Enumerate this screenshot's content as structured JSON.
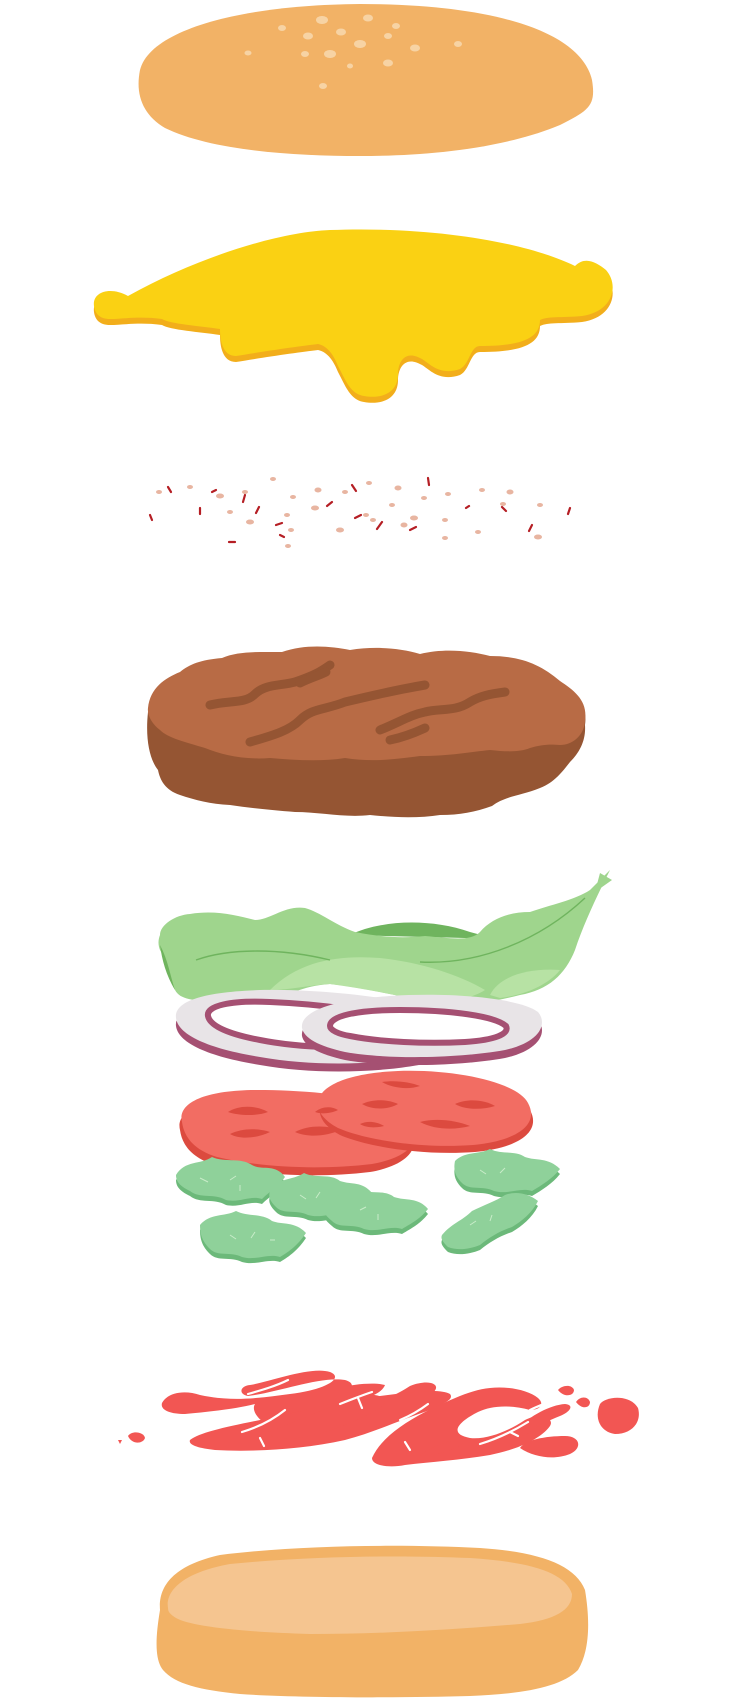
{
  "illustration": {
    "subject": "exploded-burger",
    "layers": [
      {
        "id": "top-bun",
        "icon": "top-bun-icon"
      },
      {
        "id": "cheese",
        "icon": "cheese-slice-icon"
      },
      {
        "id": "seasoning",
        "icon": "seasoning-flakes-icon"
      },
      {
        "id": "patty",
        "icon": "beef-patty-icon"
      },
      {
        "id": "lettuce",
        "icon": "lettuce-leaf-icon"
      },
      {
        "id": "onion",
        "icon": "onion-rings-icon"
      },
      {
        "id": "tomato",
        "icon": "tomato-slices-icon"
      },
      {
        "id": "pickles",
        "icon": "pickle-chips-icon"
      },
      {
        "id": "ketchup",
        "icon": "ketchup-drizzle-icon"
      },
      {
        "id": "bottom-bun",
        "icon": "bottom-bun-icon"
      }
    ],
    "colors": {
      "background": "#ffffff",
      "bun": "#f2b266",
      "bun_inner": "#f5c590",
      "sesame": "#f7d3a4",
      "cheese": "#fad113",
      "cheese_shadow": "#f2ae1b",
      "seasoning_light": "#e8b5a1",
      "seasoning_dark": "#b51e24",
      "patty": "#b86b45",
      "patty_dark": "#955533",
      "patty_grill": "#955533",
      "lettuce": "#9fd58d",
      "lettuce_dark": "#6fb45e",
      "lettuce_light": "#b7e2a4",
      "onion_outer": "#a55072",
      "onion_inner": "#e8e4e7",
      "tomato": "#f26d63",
      "tomato_dark": "#dc4a3f",
      "pickle": "#8fd19a",
      "pickle_dark": "#6cb97a",
      "ketchup": "#f25653"
    }
  }
}
